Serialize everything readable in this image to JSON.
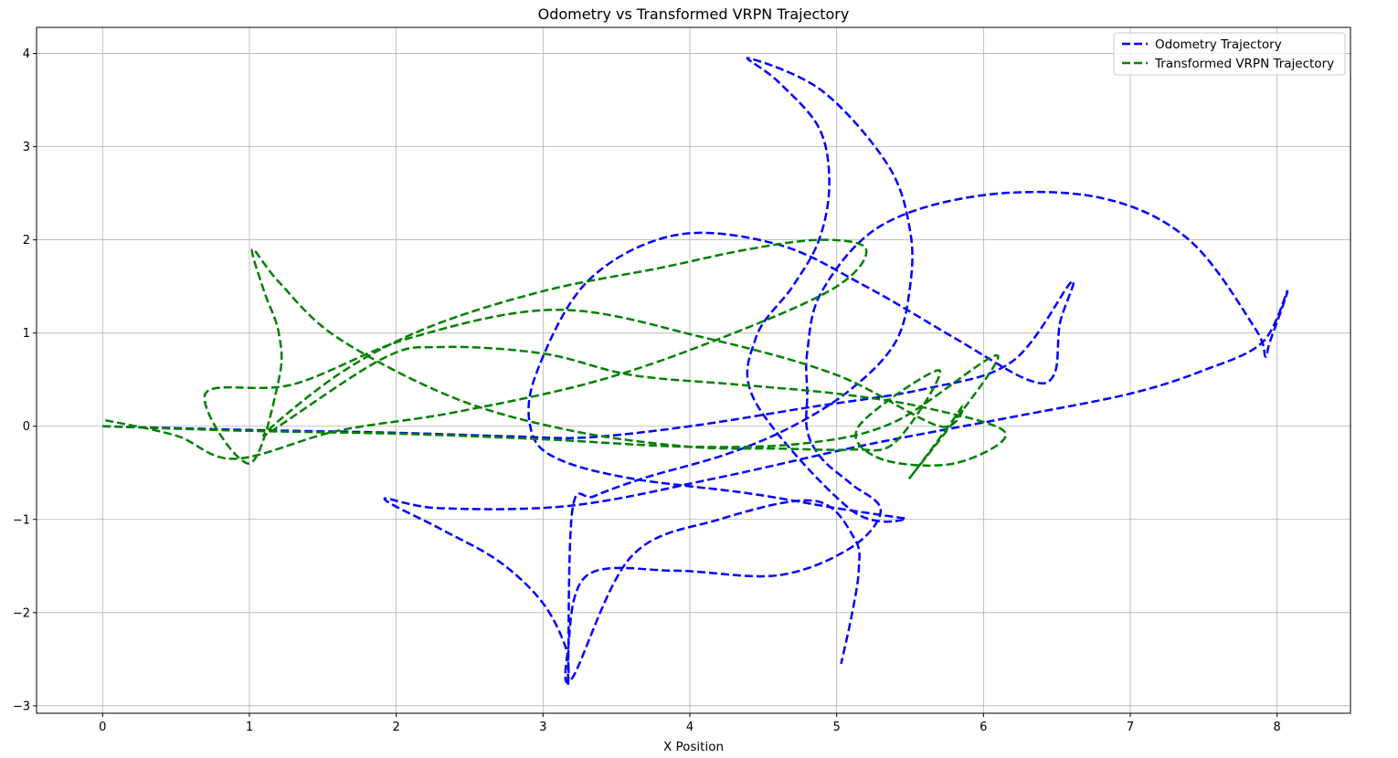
{
  "chart_data": {
    "type": "line",
    "title": "Odometry vs Transformed VRPN Trajectory",
    "xlabel": "X Position",
    "ylabel": "",
    "xlim": [
      -0.45,
      8.5
    ],
    "ylim": [
      -3.08,
      4.28
    ],
    "xticks": [
      0,
      1,
      2,
      3,
      4,
      5,
      6,
      7,
      8
    ],
    "yticks": [
      -3,
      -2,
      -1,
      0,
      1,
      2,
      3,
      4
    ],
    "xtick_labels": [
      "0",
      "1",
      "2",
      "3",
      "4",
      "5",
      "6",
      "7",
      "8"
    ],
    "ytick_labels": [
      "−3",
      "−2",
      "−1",
      "0",
      "1",
      "2",
      "3",
      "4"
    ],
    "grid": true,
    "legend_position": "upper right",
    "series": [
      {
        "name": "Odometry Trajectory",
        "color": "#0000ff",
        "linestyle": "dashed",
        "x": [
          0,
          1.0,
          2.0,
          2.8,
          3.3,
          4.0,
          4.8,
          5.6,
          6.2,
          6.6,
          6.52,
          6.48,
          6.3,
          5.8,
          5.2,
          4.6,
          3.9,
          3.3,
          2.95,
          2.92,
          3.1,
          3.6,
          4.4,
          5.0,
          5.47,
          5.1,
          4.45,
          4.45,
          4.7,
          4.88,
          4.95,
          4.88,
          4.6,
          4.4,
          4.9,
          5.35,
          5.5,
          5.5,
          5.4,
          5.1,
          4.7,
          4.25,
          3.7,
          3.35,
          3.2,
          3.17,
          3.16,
          3.0,
          2.7,
          2.3,
          1.92,
          2.3,
          3.2,
          4.2,
          5.2,
          6.2,
          7.0,
          7.5,
          7.9,
          8.07,
          7.95,
          7.92,
          7.85,
          7.4,
          6.8,
          6.0,
          5.3,
          4.9,
          4.8,
          4.8,
          4.8,
          4.9,
          5.1,
          5.3,
          5.1,
          4.6,
          3.9,
          3.3,
          3.17,
          3.2,
          3.6,
          4.2,
          4.85,
          5.12,
          5.15,
          5.1,
          5.03
        ],
        "y": [
          0,
          -0.04,
          -0.07,
          -0.11,
          -0.12,
          0.0,
          0.2,
          0.4,
          0.7,
          1.55,
          1.1,
          0.55,
          0.5,
          0.95,
          1.5,
          1.95,
          2.05,
          1.55,
          0.55,
          -0.05,
          -0.35,
          -0.56,
          -0.72,
          -0.88,
          -0.99,
          -0.9,
          0.25,
          0.95,
          1.5,
          2.0,
          2.6,
          3.2,
          3.7,
          3.95,
          3.6,
          2.8,
          2.1,
          1.5,
          0.9,
          0.4,
          0.0,
          -0.3,
          -0.55,
          -0.75,
          -0.9,
          -2.7,
          -2.4,
          -1.9,
          -1.45,
          -1.1,
          -0.78,
          -0.88,
          -0.85,
          -0.55,
          -0.2,
          0.1,
          0.35,
          0.6,
          0.9,
          1.45,
          0.9,
          0.75,
          1.05,
          2.0,
          2.45,
          2.48,
          2.15,
          1.45,
          0.8,
          0.35,
          -0.05,
          -0.35,
          -0.62,
          -0.9,
          -1.3,
          -1.6,
          -1.55,
          -1.6,
          -2.4,
          -2.7,
          -1.4,
          -1.0,
          -0.8,
          -1.2,
          -1.55,
          -2.05,
          -2.55
        ]
      },
      {
        "name": "Transformed VRPN Trajectory",
        "color": "#008000",
        "linestyle": "dashed",
        "x": [
          0,
          1.0,
          2.0,
          3.0,
          4.0,
          4.8,
          5.4,
          6.1,
          5.5,
          5.85,
          5.7,
          5.0,
          4.1,
          3.1,
          2.1,
          1.3,
          0.7,
          1.0,
          1.2,
          1.2,
          1.1,
          1.02,
          1.2,
          1.6,
          2.4,
          3.2,
          4.0,
          4.6,
          5.1,
          5.4,
          5.7,
          5.15,
          5.3,
          5.8,
          6.15,
          5.6,
          5.0,
          4.3,
          3.6,
          3.0,
          2.3,
          1.9,
          1.1,
          1.6,
          2.2,
          3.0,
          3.8,
          4.4,
          4.9,
          5.2,
          5.0,
          4.3,
          3.4,
          2.4,
          1.6,
          0.9,
          0.5,
          0.0
        ],
        "y": [
          0,
          -0.05,
          -0.08,
          -0.14,
          -0.22,
          -0.18,
          0.05,
          0.75,
          -0.55,
          0.2,
          0.0,
          0.55,
          0.95,
          1.25,
          0.95,
          0.45,
          0.35,
          -0.4,
          0.5,
          1.0,
          1.45,
          1.9,
          1.55,
          0.95,
          0.3,
          -0.05,
          -0.22,
          -0.24,
          -0.25,
          -0.17,
          0.6,
          0.0,
          -0.35,
          -0.4,
          -0.07,
          0.2,
          0.35,
          0.45,
          0.55,
          0.78,
          0.85,
          0.72,
          -0.1,
          0.55,
          1.05,
          1.45,
          1.7,
          1.9,
          2.0,
          1.9,
          1.5,
          1.0,
          0.5,
          0.15,
          -0.05,
          -0.35,
          -0.1,
          0.07
        ]
      }
    ]
  }
}
